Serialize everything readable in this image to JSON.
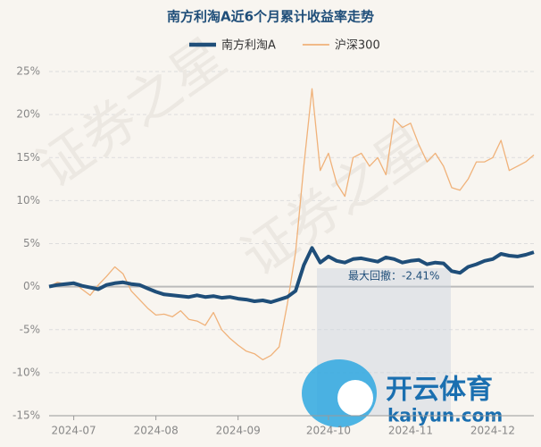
{
  "chart_data": {
    "type": "line",
    "title": "南方利淘A近6个月累计收益率走势",
    "categories": [
      null,
      null,
      null,
      "2024-07",
      null,
      null,
      null,
      null,
      null,
      null,
      null,
      null,
      null,
      "2024-08",
      null,
      null,
      null,
      null,
      null,
      null,
      null,
      null,
      null,
      "2024-09",
      null,
      null,
      null,
      null,
      null,
      null,
      null,
      null,
      null,
      null,
      "2024-10",
      null,
      null,
      null,
      null,
      null,
      null,
      null,
      null,
      null,
      "2024-11",
      null,
      null,
      null,
      null,
      null,
      null,
      null,
      null,
      null,
      "2024-12",
      null,
      null,
      null,
      null,
      null
    ],
    "series": [
      {
        "name": "南方利淘A",
        "color": "#1f4e79",
        "width": 4,
        "values": [
          0,
          0.2,
          0.3,
          0.4,
          0.1,
          -0.1,
          -0.3,
          0.2,
          0.4,
          0.5,
          0.3,
          0.2,
          -0.2,
          -0.6,
          -0.9,
          -1.0,
          -1.1,
          -1.2,
          -1.0,
          -1.2,
          -1.1,
          -1.3,
          -1.2,
          -1.4,
          -1.5,
          -1.7,
          -1.6,
          -1.8,
          -1.5,
          -1.2,
          -0.5,
          2.5,
          4.5,
          2.8,
          3.5,
          3.0,
          2.8,
          3.2,
          3.3,
          3.1,
          2.9,
          3.4,
          3.2,
          2.8,
          3.0,
          3.1,
          2.6,
          2.8,
          2.7,
          1.8,
          1.6,
          2.3,
          2.6,
          3.0,
          3.2,
          3.8,
          3.6,
          3.5,
          3.7,
          4.0
        ]
      },
      {
        "name": "沪深300",
        "color": "#f0b27a",
        "width": 1.3,
        "values": [
          0,
          0.5,
          0.3,
          0.5,
          -0.3,
          -1.0,
          0.2,
          1.2,
          2.3,
          1.5,
          -0.5,
          -1.5,
          -2.5,
          -3.3,
          -3.2,
          -3.5,
          -2.8,
          -3.8,
          -4.0,
          -4.5,
          -3.0,
          -5.0,
          -6.0,
          -6.8,
          -7.5,
          -7.8,
          -8.5,
          -8.0,
          -7.0,
          -2.0,
          4.0,
          14.0,
          23.0,
          13.5,
          15.5,
          12.0,
          10.5,
          15.0,
          15.5,
          14.0,
          15.0,
          13.0,
          19.5,
          18.5,
          19.0,
          16.5,
          14.5,
          15.5,
          14.0,
          11.5,
          11.2,
          12.5,
          14.5,
          14.5,
          15.0,
          17.0,
          13.5,
          14.0,
          14.5,
          15.3
        ]
      }
    ],
    "ylim": [
      -15,
      25
    ],
    "yticks": [
      {
        "value": -15,
        "label": "-15%"
      },
      {
        "value": -10,
        "label": "-10%"
      },
      {
        "value": -5,
        "label": "-5%"
      },
      {
        "value": 0,
        "label": "0%"
      },
      {
        "value": 5,
        "label": "5%"
      },
      {
        "value": 10,
        "label": "10%"
      },
      {
        "value": 15,
        "label": "15%"
      },
      {
        "value": 20,
        "label": "20%"
      },
      {
        "value": 25,
        "label": "25%"
      }
    ],
    "grid": true,
    "annotation": "最大回撤：-2.41%",
    "watermark": "证券之星",
    "logo_text": "开云体育",
    "logo_url": "kaiyun.com"
  }
}
